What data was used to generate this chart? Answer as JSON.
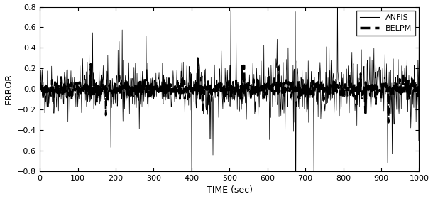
{
  "title": "",
  "xlabel": "TIME (sec)",
  "ylabel": "ERROR",
  "xlim": [
    0,
    1000
  ],
  "ylim": [
    -0.8,
    0.8
  ],
  "xticks": [
    0,
    100,
    200,
    300,
    400,
    500,
    600,
    700,
    800,
    900,
    1000
  ],
  "yticks": [
    -0.8,
    -0.6,
    -0.4,
    -0.2,
    0,
    0.2,
    0.4,
    0.6,
    0.8
  ],
  "legend_labels": [
    "ANFIS",
    "BELPM"
  ],
  "line_color": "#000000",
  "background_color": "#ffffff",
  "seed_anfis": 42,
  "seed_belpm": 99,
  "n_points": 1000,
  "anfis_scale": 0.12,
  "belpm_scale": 0.04,
  "spike_prob": 0.03,
  "spike_scale": 0.6
}
